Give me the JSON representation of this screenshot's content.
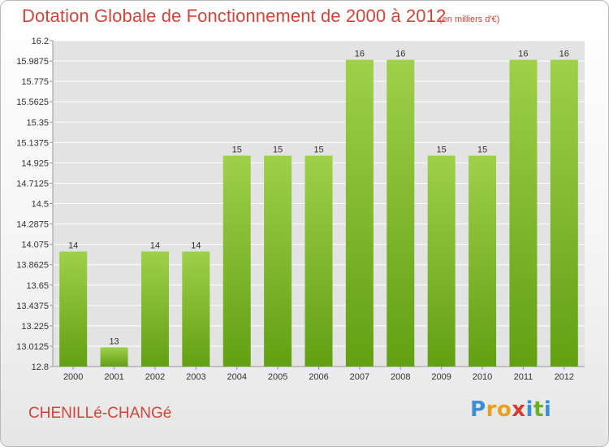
{
  "header": {
    "title": "Dotation Globale de Fonctionnement de 2000 à 2012",
    "subtitle": "(en milliers d'€)"
  },
  "footer": {
    "commune": "CHENILLé-CHANGé",
    "logo": [
      "P",
      "r",
      "o",
      "x",
      "i",
      "t",
      "i"
    ],
    "logo_colors": [
      "#3a8fd6",
      "#e8a020",
      "#e8a020",
      "#d93a30",
      "#3a8fd6",
      "#6ab02a",
      "#3a8fd6"
    ]
  },
  "colors": {
    "bar_top": "#9fd04a",
    "bar_bottom": "#62a012",
    "grid": "#ffffff",
    "plot_bg": "#e3e3e3"
  },
  "chart_data": {
    "type": "bar",
    "title": "Dotation Globale de Fonctionnement de 2000 à 2012",
    "subtitle": "(en milliers d'€)",
    "xlabel": "",
    "ylabel": "",
    "categories": [
      "2000",
      "2001",
      "2002",
      "2003",
      "2004",
      "2005",
      "2006",
      "2007",
      "2008",
      "2009",
      "2010",
      "2011",
      "2012"
    ],
    "values": [
      14,
      13,
      14,
      14,
      15,
      15,
      15,
      16,
      16,
      15,
      15,
      16,
      16
    ],
    "value_labels": [
      "14",
      "13",
      "14",
      "14",
      "15",
      "15",
      "15",
      "16",
      "16",
      "15",
      "15",
      "16",
      "16"
    ],
    "ylim": [
      12.8,
      16.2
    ],
    "yticks": [
      "12.8",
      "13.0125",
      "13.225",
      "13.4375",
      "13.65",
      "13.8625",
      "14.075",
      "14.2875",
      "14.5",
      "14.7125",
      "14.925",
      "15.1375",
      "15.35",
      "15.5625",
      "15.775",
      "15.9875",
      "16.2"
    ],
    "grid": true,
    "legend": "none"
  }
}
